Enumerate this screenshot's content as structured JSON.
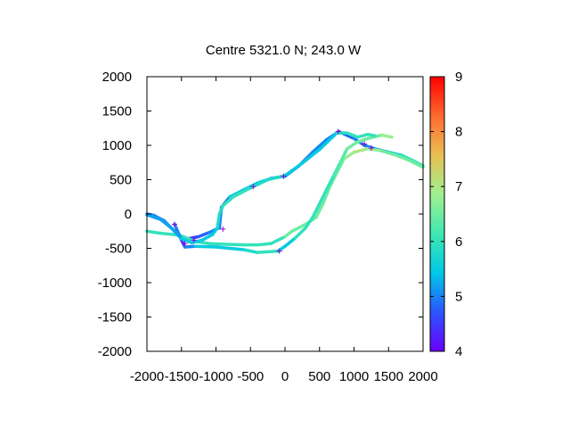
{
  "chart_data": {
    "type": "scatter",
    "title": "Centre 5321.0 N; 243.0  W",
    "xlabel": "",
    "ylabel": "",
    "xlim": [
      -2000,
      2000
    ],
    "ylim": [
      -2000,
      2000
    ],
    "x_ticks": [
      "-2000",
      "-1500",
      "-1000",
      "-500",
      "0",
      "500",
      "1000",
      "1500",
      "2000"
    ],
    "y_ticks": [
      "2000",
      "1500",
      "1000",
      "500",
      "0",
      "-500",
      "-1000",
      "-1500",
      "-2000"
    ],
    "colorbar": {
      "range": [
        4,
        9
      ],
      "ticks": [
        "9",
        "8",
        "7",
        "6",
        "5",
        "4"
      ],
      "palette": [
        "#6a00ff",
        "#2a55ff",
        "#00c8e6",
        "#40e8b0",
        "#a0f090",
        "#e8c050",
        "#ff6a30",
        "#ff0000"
      ]
    },
    "grid": false,
    "legend": "none",
    "tracks": [
      {
        "name": "",
        "points": [
          [
            -2000,
            0
          ],
          [
            -1900,
            -20
          ],
          [
            -1750,
            -100
          ],
          [
            -1600,
            -250
          ],
          [
            -1500,
            -330
          ],
          [
            -1400,
            -360
          ],
          [
            -1250,
            -330
          ],
          [
            -1100,
            -270
          ],
          [
            -950,
            -200
          ],
          [
            -930,
            0
          ],
          [
            -920,
            100
          ],
          [
            -800,
            250
          ],
          [
            -600,
            350
          ],
          [
            -400,
            450
          ],
          [
            -200,
            520
          ],
          [
            0,
            550
          ],
          [
            200,
            700
          ],
          [
            400,
            900
          ],
          [
            600,
            1080
          ],
          [
            780,
            1200
          ],
          [
            1000,
            1100
          ],
          [
            1150,
            1000
          ],
          [
            1300,
            950
          ],
          [
            1500,
            900
          ],
          [
            1700,
            850
          ],
          [
            1850,
            780
          ],
          [
            2000,
            700
          ]
        ],
        "colors": [
          5,
          5,
          5,
          5,
          4.5,
          4.5,
          4.8,
          5,
          5,
          5,
          5,
          5.5,
          5.5,
          5.5,
          5,
          5,
          5,
          5,
          5,
          4.8,
          5,
          5,
          5.2,
          5.5,
          6,
          6,
          6
        ]
      },
      {
        "name": "",
        "points": [
          [
            -2000,
            -250
          ],
          [
            -1800,
            -280
          ],
          [
            -1600,
            -300
          ],
          [
            -1500,
            -320
          ],
          [
            -1300,
            -400
          ],
          [
            -1100,
            -430
          ],
          [
            -900,
            -440
          ],
          [
            -600,
            -450
          ],
          [
            -400,
            -450
          ],
          [
            -200,
            -430
          ],
          [
            0,
            -330
          ],
          [
            100,
            -250
          ],
          [
            300,
            -150
          ],
          [
            450,
            -50
          ],
          [
            550,
            150
          ],
          [
            650,
            400
          ],
          [
            750,
            600
          ],
          [
            850,
            800
          ],
          [
            1000,
            900
          ],
          [
            1200,
            950
          ],
          [
            1400,
            920
          ],
          [
            1600,
            860
          ],
          [
            1800,
            780
          ],
          [
            2000,
            680
          ]
        ],
        "colors": [
          6,
          6,
          6,
          6,
          6,
          6,
          6,
          6,
          6,
          6,
          6.5,
          6.5,
          6.5,
          6.5,
          6.5,
          6.5,
          6.5,
          6.8,
          7,
          6.8,
          6.5,
          6.5,
          6.5,
          6.5
        ]
      },
      {
        "name": "",
        "points": [
          [
            -1600,
            -150
          ],
          [
            -1500,
            -380
          ],
          [
            -1450,
            -480
          ],
          [
            -1300,
            -470
          ],
          [
            -1000,
            -480
          ],
          [
            -800,
            -500
          ],
          [
            -600,
            -520
          ],
          [
            -400,
            -560
          ],
          [
            -100,
            -540
          ],
          [
            0,
            -470
          ],
          [
            150,
            -350
          ],
          [
            300,
            -200
          ],
          [
            400,
            -50
          ],
          [
            500,
            150
          ],
          [
            600,
            350
          ],
          [
            700,
            550
          ],
          [
            800,
            750
          ],
          [
            900,
            950
          ],
          [
            1050,
            1050
          ],
          [
            1200,
            1100
          ],
          [
            1400,
            1150
          ],
          [
            1550,
            1120
          ]
        ],
        "colors": [
          5,
          4.5,
          5,
          5.5,
          5.5,
          5.5,
          5.8,
          6,
          5.5,
          5.5,
          6,
          6,
          6,
          6,
          6,
          6.2,
          6.3,
          6.5,
          6.5,
          6.5,
          6.8,
          6.5
        ]
      },
      {
        "name": "",
        "points": [
          [
            -2000,
            -10
          ],
          [
            -1800,
            -80
          ],
          [
            -1650,
            -200
          ],
          [
            -1500,
            -360
          ],
          [
            -1350,
            -420
          ],
          [
            -1200,
            -380
          ],
          [
            -1050,
            -300
          ],
          [
            -980,
            -200
          ],
          [
            -950,
            0
          ],
          [
            -900,
            120
          ],
          [
            -750,
            250
          ],
          [
            -500,
            380
          ],
          [
            -250,
            500
          ],
          [
            0,
            560
          ],
          [
            250,
            740
          ],
          [
            500,
            940
          ],
          [
            750,
            1180
          ],
          [
            900,
            1180
          ],
          [
            1050,
            1120
          ],
          [
            1200,
            1160
          ],
          [
            1300,
            1140
          ]
        ],
        "colors": [
          5.2,
          5.2,
          5.2,
          5.5,
          5.5,
          5.5,
          5.5,
          5.8,
          5.8,
          6,
          6,
          5.8,
          5.8,
          5.5,
          5.5,
          5.5,
          5.8,
          6,
          6,
          6,
          6
        ]
      }
    ],
    "markers": [
      [
        -1600,
        -150
      ],
      [
        -1450,
        -430
      ],
      [
        -1320,
        -380
      ],
      [
        -900,
        -220
      ],
      [
        -460,
        400
      ],
      [
        -20,
        550
      ],
      [
        770,
        1200
      ],
      [
        1150,
        1020
      ],
      [
        1250,
        960
      ],
      [
        -80,
        -540
      ]
    ]
  }
}
